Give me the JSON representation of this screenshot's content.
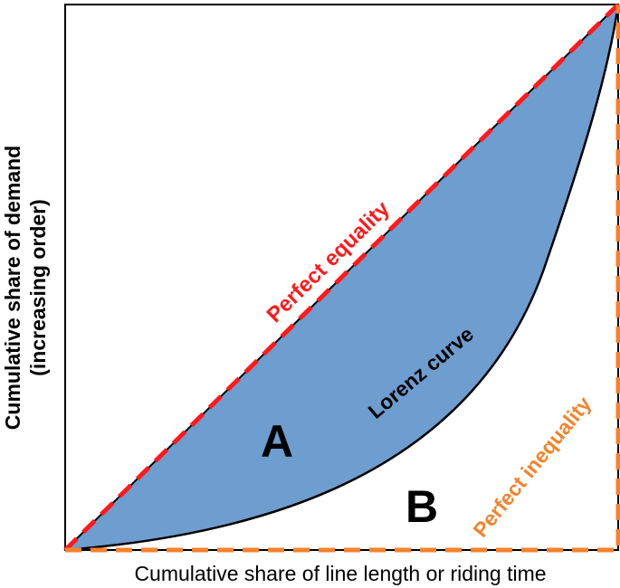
{
  "diagram": {
    "x_axis_label": "Cumulative share of line length or riding time",
    "y_axis_label_line1": "Cumulative share of demand",
    "y_axis_label_line2": "(increasing order)",
    "equality_label": "Perfect equality",
    "lorenz_label": "Lorenz curve",
    "inequality_label": "Perfect inequality",
    "region_a_label": "A",
    "region_b_label": "B",
    "colors": {
      "fill": "#6e9dcf",
      "equality_line": "#ff1a1a",
      "inequality_line": "#f5822a",
      "curve": "#000000",
      "frame": "#000000"
    }
  }
}
